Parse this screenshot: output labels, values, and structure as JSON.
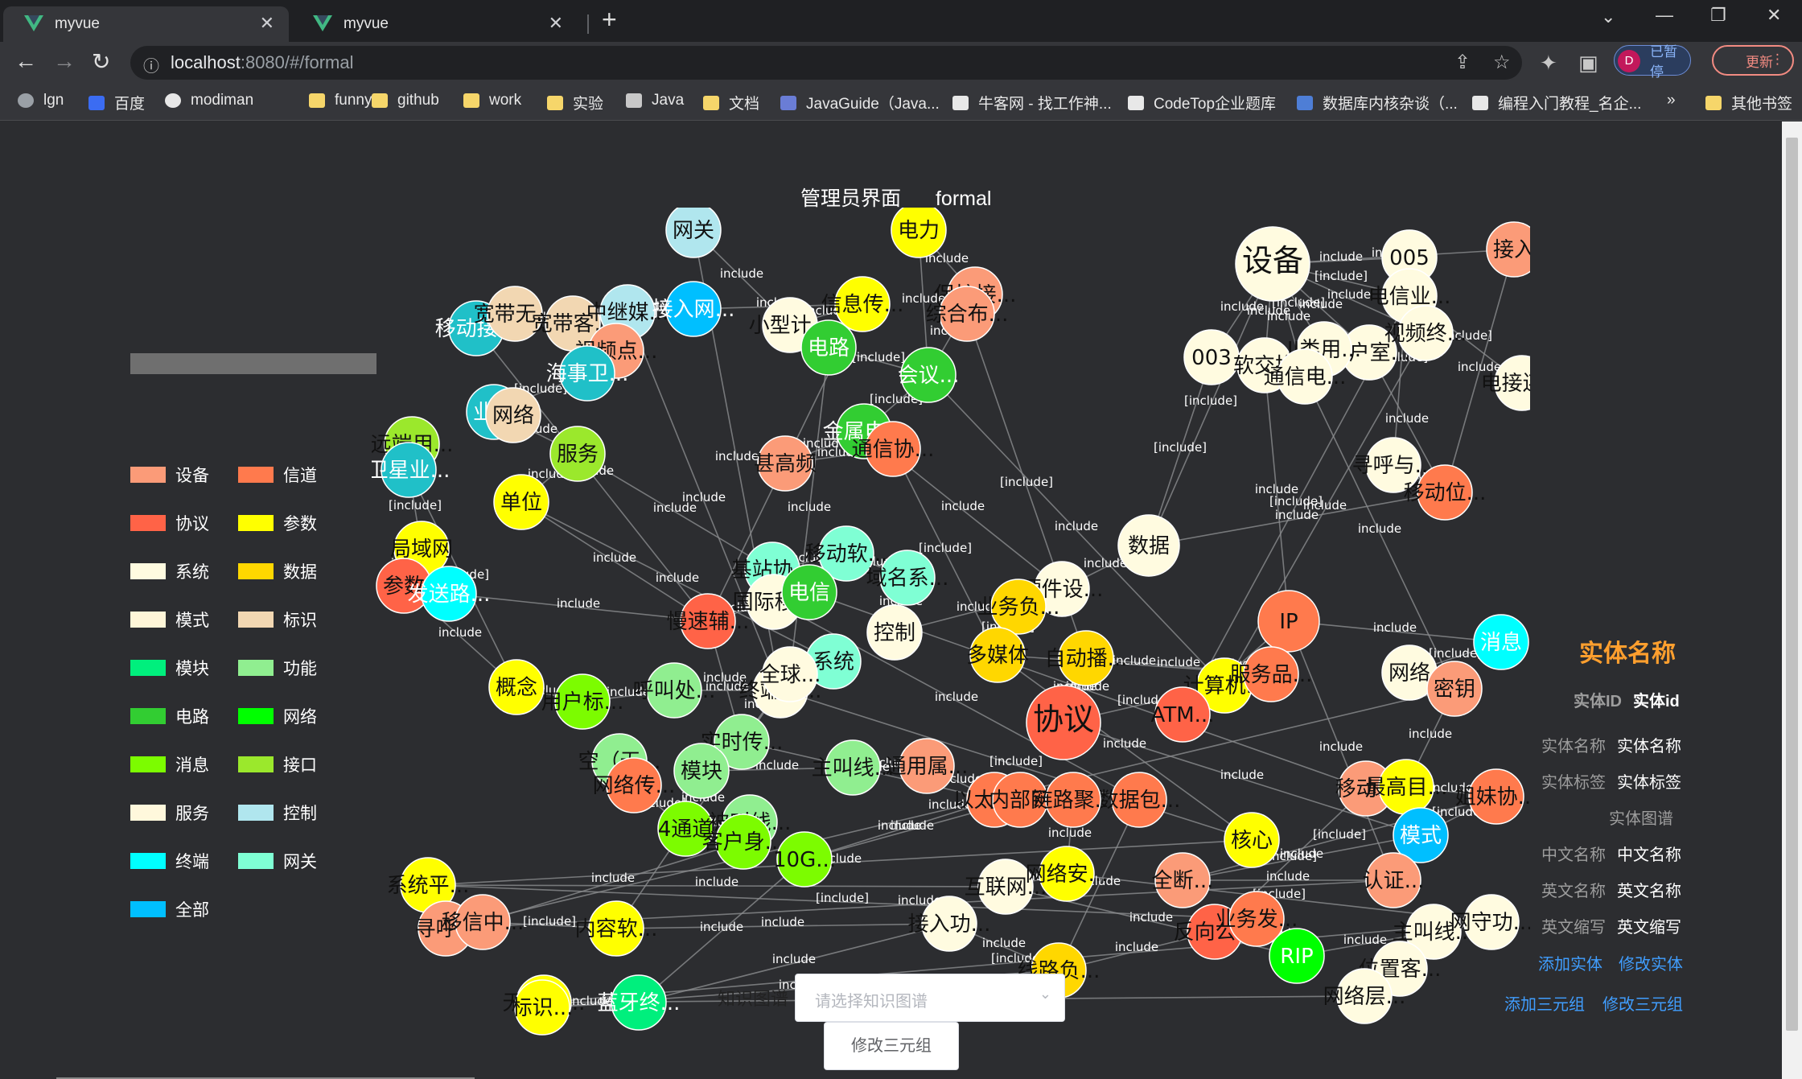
{
  "browser": {
    "tabs": [
      {
        "title": "myvue",
        "active": true
      },
      {
        "title": "myvue",
        "active": false
      }
    ],
    "url_host": "localhost",
    "url_rest": ":8080/#/formal",
    "profile_initial": "D",
    "profile_status": "已暂停",
    "update_label": "更新",
    "bookmarks": [
      {
        "label": "lgn",
        "icon": "globe-icon"
      },
      {
        "label": "百度",
        "icon": "baidu-icon"
      },
      {
        "label": "modiman",
        "icon": "github-icon"
      },
      {
        "label": "funny",
        "icon": "folder-icon"
      },
      {
        "label": "github",
        "icon": "folder-icon"
      },
      {
        "label": "work",
        "icon": "folder-icon"
      },
      {
        "label": "实验",
        "icon": "folder-icon"
      },
      {
        "label": "Java",
        "icon": "list-icon"
      },
      {
        "label": "文档",
        "icon": "folder-icon"
      },
      {
        "label": "JavaGuide（Java...",
        "icon": "javaguide-icon"
      },
      {
        "label": "牛客网 - 找工作神...",
        "icon": "nowcoder-icon"
      },
      {
        "label": "CodeTop企业题库",
        "icon": "codetop-icon"
      },
      {
        "label": "数据库内核杂谈（...",
        "icon": "infoq-icon"
      },
      {
        "label": "编程入门教程_名企...",
        "icon": "biancheng-icon"
      }
    ],
    "bookmarks_more": "»",
    "other_bookmarks": "其他书签"
  },
  "header": {
    "role": "管理员界面",
    "mode": "formal"
  },
  "legend": [
    {
      "label": "设备",
      "color": "#fb9b78"
    },
    {
      "label": "信道",
      "color": "#ff7a4d"
    },
    {
      "label": "协议",
      "color": "#ff6347"
    },
    {
      "label": "参数",
      "color": "#ffff00"
    },
    {
      "label": "系统",
      "color": "#fffbe0"
    },
    {
      "label": "数据",
      "color": "#ffd700"
    },
    {
      "label": "模式",
      "color": "#fff6d8"
    },
    {
      "label": "标识",
      "color": "#f2d7b2"
    },
    {
      "label": "模块",
      "color": "#00ef7d"
    },
    {
      "label": "功能",
      "color": "#90ee90"
    },
    {
      "label": "电路",
      "color": "#32cd32"
    },
    {
      "label": "网络",
      "color": "#00ff00"
    },
    {
      "label": "消息",
      "color": "#7cfc00"
    },
    {
      "label": "接口",
      "color": "#9be82c"
    },
    {
      "label": "服务",
      "color": "#fff8dc"
    },
    {
      "label": "控制",
      "color": "#b0e6ee"
    },
    {
      "label": "终端",
      "color": "#00ffff"
    },
    {
      "label": "网关",
      "color": "#7fffd4"
    },
    {
      "label": "全部",
      "color": "#00bfff"
    }
  ],
  "graph": {
    "nodes": [
      {
        "label": "网关",
        "c": "#b0e6ee"
      },
      {
        "label": "电力",
        "c": "#ffff00"
      },
      {
        "label": "接入",
        "c": "#fb9b78"
      },
      {
        "label": "设备",
        "c": "#fffbe0"
      },
      {
        "label": "005",
        "c": "#fffbe0"
      },
      {
        "label": "电信业...",
        "c": "#fffbe0"
      },
      {
        "label": "移动接...",
        "c": "#20c0c8"
      },
      {
        "label": "宽带无...",
        "c": "#f2d7b2"
      },
      {
        "label": "宽带客...",
        "c": "#f2d7b2"
      },
      {
        "label": "中继媒...",
        "c": "#b0e6ee"
      },
      {
        "label": "接入网...",
        "c": "#00bfff"
      },
      {
        "label": "信息传...",
        "c": "#ffff00"
      },
      {
        "label": "保护接...",
        "c": "#fb9b78"
      },
      {
        "label": "综合布...",
        "c": "#fb9b78"
      },
      {
        "label": "小型计...",
        "c": "#fffbe0"
      },
      {
        "label": "电路",
        "c": "#32cd32"
      },
      {
        "label": "视频点...",
        "c": "#fb9b78"
      },
      {
        "label": "海事卫...",
        "c": "#20c0c8"
      },
      {
        "label": "会议...",
        "c": "#32cd32"
      },
      {
        "label": "用户室...",
        "c": "#fffbe0"
      },
      {
        "label": "视频终...",
        "c": "#fffbe0"
      },
      {
        "label": "003",
        "c": "#fffbe0"
      },
      {
        "label": "软交换",
        "c": "#fffbe0"
      },
      {
        "label": "II类用...",
        "c": "#fffbe0"
      },
      {
        "label": "通信电...",
        "c": "#fffbe0"
      },
      {
        "label": "电接连...",
        "c": "#fffbe0"
      },
      {
        "label": "业务",
        "c": "#20c0c8"
      },
      {
        "label": "网络",
        "c": "#f2d7b2"
      },
      {
        "label": "服务",
        "c": "#9be82c"
      },
      {
        "label": "远端用...",
        "c": "#9be82c"
      },
      {
        "label": "卫星业...",
        "c": "#20c0c8"
      },
      {
        "label": "单位",
        "c": "#ffff00"
      },
      {
        "label": "金属电...",
        "c": "#32cd32"
      },
      {
        "label": "通信协...",
        "c": "#ff7a4d"
      },
      {
        "label": "甚高频",
        "c": "#fb9b78"
      },
      {
        "label": "寻呼与...",
        "c": "#fffbe0"
      },
      {
        "label": "移动位...",
        "c": "#ff7a4d"
      },
      {
        "label": "数据",
        "c": "#fffbe0"
      },
      {
        "label": "局域网",
        "c": "#ffff00"
      },
      {
        "label": "参数",
        "c": "#ff6347"
      },
      {
        "label": "发送路...",
        "c": "#00ffff"
      },
      {
        "label": "基站协...",
        "c": "#7fffd4"
      },
      {
        "label": "移动软...",
        "c": "#7fffd4"
      },
      {
        "label": "域名系...",
        "c": "#7fffd4"
      },
      {
        "label": "慢速辅...",
        "c": "#ff6347"
      },
      {
        "label": "国际移...",
        "c": "#fffbe0"
      },
      {
        "label": "电信",
        "c": "#32cd32"
      },
      {
        "label": "硬件设...",
        "c": "#fffbe0"
      },
      {
        "label": "业务负...",
        "c": "#ffd700"
      },
      {
        "label": "控制",
        "c": "#fffbe0"
      },
      {
        "label": "IP",
        "c": "#ff7a4d"
      },
      {
        "label": "消息",
        "c": "#00ffff"
      },
      {
        "label": "网络",
        "c": "#fffbe0"
      },
      {
        "label": "密钥",
        "c": "#fb9b78"
      },
      {
        "label": "概念",
        "c": "#ffff00"
      },
      {
        "label": "用户标...",
        "c": "#7cfc00"
      },
      {
        "label": "呼叫处...",
        "c": "#90ee90"
      },
      {
        "label": "终端密...",
        "c": "#fffbe0"
      },
      {
        "label": "系统",
        "c": "#7fffd4"
      },
      {
        "label": "全球...",
        "c": "#fffbe0"
      },
      {
        "label": "多媒体",
        "c": "#ffd700"
      },
      {
        "label": "计算机...",
        "c": "#ffff00"
      },
      {
        "label": "服务品...",
        "c": "#ff7a4d"
      },
      {
        "label": "自动播...",
        "c": "#ffd700"
      },
      {
        "label": "实时传...",
        "c": "#90ee90"
      },
      {
        "label": "协议",
        "c": "#ff6347"
      },
      {
        "label": "ATM...",
        "c": "#ff6347"
      },
      {
        "label": "空（无...",
        "c": "#90ee90"
      },
      {
        "label": "网络传...",
        "c": "#ff7a4d"
      },
      {
        "label": "模块",
        "c": "#90ee90"
      },
      {
        "label": "主叫线...",
        "c": "#90ee90"
      },
      {
        "label": "通用属...",
        "c": "#fb9b78"
      },
      {
        "label": "以太网...",
        "c": "#ff7a4d"
      },
      {
        "label": "数据包...",
        "c": "#ff7a4d"
      },
      {
        "label": "移动...",
        "c": "#fb9b78"
      },
      {
        "label": "最高目...",
        "c": "#ffff00"
      },
      {
        "label": "姐妹协...",
        "c": "#ff7a4d"
      },
      {
        "label": "4通道",
        "c": "#7cfc00"
      },
      {
        "label": "被叫线...",
        "c": "#90ee90"
      },
      {
        "label": "客户身...",
        "c": "#7cfc00"
      },
      {
        "label": "10G...",
        "c": "#7cfc00"
      },
      {
        "label": "内部网",
        "c": "#ff7a4d"
      },
      {
        "label": "链路聚...",
        "c": "#ff7a4d"
      },
      {
        "label": "核心",
        "c": "#ffff00"
      },
      {
        "label": "模式",
        "c": "#00bfff"
      },
      {
        "label": "系统平...",
        "c": "#ffff00"
      },
      {
        "label": "互联网...",
        "c": "#fffbe0"
      },
      {
        "label": "网络安...",
        "c": "#ffff00"
      },
      {
        "label": "全断...",
        "c": "#fb9b78"
      },
      {
        "label": "认证...",
        "c": "#fb9b78"
      },
      {
        "label": "寻呼...",
        "c": "#fb9b78"
      },
      {
        "label": "移信中...",
        "c": "#fb9b78"
      },
      {
        "label": "内容软...",
        "c": "#ffff00"
      },
      {
        "label": "接入功...",
        "c": "#fffbe0"
      },
      {
        "label": "线路负...",
        "c": "#ffd700"
      },
      {
        "label": "反向公...",
        "c": "#ff6347"
      },
      {
        "label": "业务发...",
        "c": "#ff7a4d"
      },
      {
        "label": "RIP",
        "c": "#00ff00"
      },
      {
        "label": "主叫线...",
        "c": "#fffbe0"
      },
      {
        "label": "网守功...",
        "c": "#fffbe0"
      },
      {
        "label": "位置客...",
        "c": "#fffbe0"
      },
      {
        "label": "网络层...",
        "c": "#fffbe0"
      },
      {
        "label": "无线电...",
        "c": "#ffff00"
      },
      {
        "label": "蓝牙终...",
        "c": "#00ef7d"
      },
      {
        "label": "标识...",
        "c": "#ffff00"
      }
    ],
    "edge_label": "include",
    "edge_label_alt": "[include]"
  },
  "entity": {
    "title": "实体名称",
    "id_label": "实体ID",
    "id_value": "实体id",
    "rows": [
      {
        "k": "实体名称",
        "v": "实体名称"
      },
      {
        "k": "实体标签",
        "v": "实体标签"
      },
      {
        "k": "",
        "v": "实体图谱"
      },
      {
        "k": "中文名称",
        "v": "中文名称"
      },
      {
        "k": "英文名称",
        "v": "英文名称"
      },
      {
        "k": "英文缩写",
        "v": "英文缩写"
      }
    ],
    "add_entity": "添加实体",
    "edit_entity": "修改实体",
    "add_triple": "添加三元组",
    "edit_triple": "修改三元组"
  },
  "bottom": {
    "kg_label": "知识图谱",
    "kg_placeholder": "请选择知识图谱",
    "modify_button": "修改三元组"
  }
}
